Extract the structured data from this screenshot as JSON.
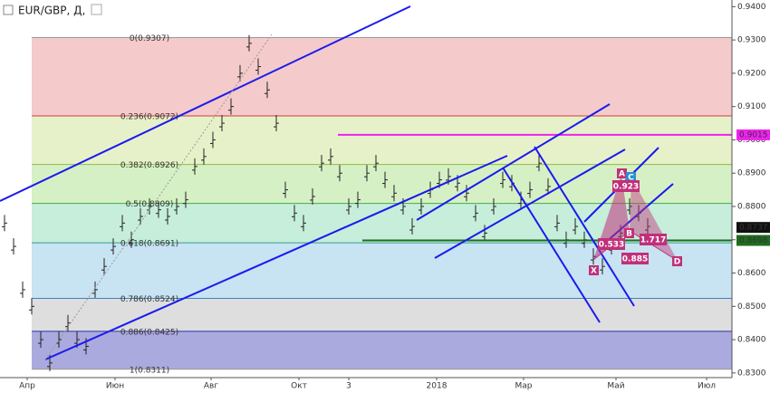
{
  "header": {
    "symbol": "EUR/GBP, Д,"
  },
  "chart_data": {
    "type": "ohlc",
    "xlim": [
      -0.5,
      80.3
    ],
    "xticks": [
      {
        "value": 2.5,
        "label": "Апр"
      },
      {
        "value": 12.2,
        "label": "Июн"
      },
      {
        "value": 22.8,
        "label": "Авг"
      },
      {
        "value": 32.5,
        "label": "Окт"
      },
      {
        "value": 38,
        "label": "3"
      },
      {
        "value": 47.7,
        "label": "2018"
      },
      {
        "value": 57.3,
        "label": "Мар"
      },
      {
        "value": 67.5,
        "label": "Май"
      },
      {
        "value": 77.5,
        "label": "Июл"
      }
    ],
    "ylim": [
      0.8286,
      0.942
    ],
    "yticks": [
      {
        "value": 0.94,
        "label": "0.9400"
      },
      {
        "value": 0.93,
        "label": "0.9300"
      },
      {
        "value": 0.92,
        "label": "0.9200"
      },
      {
        "value": 0.91,
        "label": "0.9100"
      },
      {
        "value": 0.9,
        "label": "0.9000"
      },
      {
        "value": 0.89,
        "label": "0.8900"
      },
      {
        "value": 0.88,
        "label": "0.8800"
      },
      {
        "value": 0.87,
        "label": "0.8700"
      },
      {
        "value": 0.86,
        "label": "0.8600"
      },
      {
        "value": 0.85,
        "label": "0.8500"
      },
      {
        "value": 0.84,
        "label": "0.8400"
      },
      {
        "value": 0.83,
        "label": "0.8300"
      }
    ],
    "color": "#222222",
    "values": [
      0.875,
      0.868,
      0.855,
      0.85,
      0.84,
      0.833,
      0.84,
      0.845,
      0.84,
      0.838,
      0.855,
      0.862,
      0.868,
      0.875,
      0.87,
      0.877,
      0.88,
      0.879,
      0.877,
      0.88,
      0.882,
      0.892,
      0.895,
      0.9,
      0.905,
      0.91,
      0.92,
      0.929,
      0.922,
      0.915,
      0.905,
      0.885,
      0.878,
      0.875,
      0.883,
      0.893,
      0.895,
      0.89,
      0.88,
      0.882,
      0.89,
      0.893,
      0.888,
      0.884,
      0.88,
      0.874,
      0.88,
      0.885,
      0.888,
      0.889,
      0.887,
      0.884,
      0.878,
      0.872,
      0.88,
      0.888,
      0.887,
      0.882,
      0.885,
      0.893,
      0.886,
      0.875,
      0.87,
      0.874,
      0.87,
      0.865,
      0.862,
      0.868,
      0.872,
      0.88,
      0.878,
      0.874
    ],
    "fib_levels": [
      {
        "value": 0.9307,
        "label": "0(0.9307)",
        "color": "#999999",
        "fill": "#f4caca"
      },
      {
        "value": 0.9072,
        "label": "0.236(0.9072)",
        "color": "#d04040",
        "fill": "#e7f1c9"
      },
      {
        "value": 0.8926,
        "label": "0.382(0.8926)",
        "color": "#88c040",
        "fill": "#d6f0c6"
      },
      {
        "value": 0.8809,
        "label": "0.5(0.8809)",
        "color": "#40b040",
        "fill": "#c6eedb"
      },
      {
        "value": 0.8691,
        "label": "0.618(0.8691)",
        "color": "#30a090",
        "fill": "#c8e3f1"
      },
      {
        "value": 0.8524,
        "label": "0.786(0.8524)",
        "color": "#4080c0",
        "fill": "#dedede"
      },
      {
        "value": 0.8425,
        "label": "0.886(0.8425)",
        "color": "#3030a0",
        "fill": "#aaaade"
      },
      {
        "value": 0.8311,
        "label": "1(0.8311)",
        "color": "#999999",
        "fill": "none"
      }
    ],
    "price_tags": [
      {
        "value": 0.9015,
        "label": "0.9015",
        "color": "#ee22ee",
        "line_start": 36.8
      },
      {
        "value": 0.8737,
        "label": "0.8737",
        "color": "#111111"
      },
      {
        "value": 0.8698,
        "label": "0.8698",
        "color": "#1f6b1f",
        "line_start": 39.5
      }
    ],
    "pattern": {
      "points": [
        "X",
        "A",
        "B",
        "C",
        "D"
      ],
      "ratios": [
        0.923,
        0.533,
        1.717,
        0.885
      ]
    }
  }
}
